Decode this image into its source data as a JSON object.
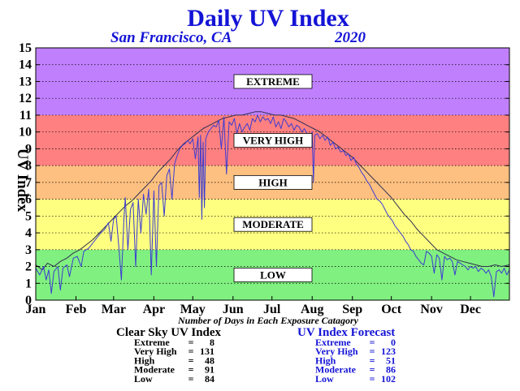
{
  "chart_data": {
    "type": "line",
    "title": "Daily UV Index",
    "subtitle_location": "San Francisco, CA",
    "subtitle_year": "2020",
    "ylabel": "UV Index",
    "xlabel_note": "Number of Days in Each Exposure Catagory",
    "ylim": [
      0,
      15
    ],
    "yticks": [
      "0",
      "1",
      "2",
      "3",
      "4",
      "5",
      "6",
      "7",
      "8",
      "9",
      "10",
      "11",
      "12",
      "13",
      "14",
      "15"
    ],
    "xlim": [
      1,
      366
    ],
    "months": [
      {
        "label": "Jan",
        "day": 1
      },
      {
        "label": "Feb",
        "day": 32
      },
      {
        "label": "Mar",
        "day": 61
      },
      {
        "label": "Apr",
        "day": 92
      },
      {
        "label": "May",
        "day": 122
      },
      {
        "label": "Jun",
        "day": 153
      },
      {
        "label": "Jul",
        "day": 183
      },
      {
        "label": "Aug",
        "day": 214
      },
      {
        "label": "Sep",
        "day": 245
      },
      {
        "label": "Oct",
        "day": 275
      },
      {
        "label": "Nov",
        "day": 306
      },
      {
        "label": "Dec",
        "day": 336
      }
    ],
    "grid": true,
    "bands": [
      {
        "label": "LOW",
        "from": 0,
        "to": 3,
        "color": "#80f080",
        "label_y": 1.5
      },
      {
        "label": "MODERATE",
        "from": 3,
        "to": 6,
        "color": "#fefe80",
        "label_y": 4.5
      },
      {
        "label": "HIGH",
        "from": 6,
        "to": 8,
        "color": "#fec080",
        "label_y": 7
      },
      {
        "label": "VERY HIGH",
        "from": 8,
        "to": 11,
        "color": "#fe8080",
        "label_y": 9.5
      },
      {
        "label": "EXTREME",
        "from": 11,
        "to": 15,
        "color": "#c080fe",
        "label_y": 13
      }
    ],
    "series": [
      {
        "key": "clear_sky",
        "color": "#303050",
        "points": [
          [
            1,
            2.1
          ],
          [
            6,
            1.8
          ],
          [
            10,
            2.2
          ],
          [
            15,
            2.0
          ],
          [
            20,
            2.3
          ],
          [
            25,
            2.5
          ],
          [
            30,
            2.8
          ],
          [
            35,
            3.0
          ],
          [
            40,
            3.3
          ],
          [
            45,
            3.6
          ],
          [
            50,
            4.0
          ],
          [
            55,
            4.4
          ],
          [
            60,
            4.8
          ],
          [
            65,
            5.2
          ],
          [
            70,
            5.6
          ],
          [
            75,
            5.9
          ],
          [
            80,
            6.3
          ],
          [
            85,
            6.7
          ],
          [
            90,
            7.1
          ],
          [
            95,
            7.6
          ],
          [
            100,
            8.0
          ],
          [
            105,
            8.4
          ],
          [
            110,
            8.9
          ],
          [
            115,
            9.3
          ],
          [
            120,
            9.6
          ],
          [
            125,
            9.9
          ],
          [
            130,
            10.2
          ],
          [
            135,
            10.4
          ],
          [
            140,
            10.6
          ],
          [
            145,
            10.8
          ],
          [
            150,
            10.9
          ],
          [
            155,
            11.0
          ],
          [
            160,
            11.0
          ],
          [
            165,
            11.1
          ],
          [
            170,
            11.2
          ],
          [
            175,
            11.2
          ],
          [
            180,
            11.1
          ],
          [
            185,
            11.0
          ],
          [
            190,
            11.0
          ],
          [
            195,
            10.9
          ],
          [
            200,
            10.8
          ],
          [
            205,
            10.6
          ],
          [
            210,
            10.4
          ],
          [
            215,
            10.2
          ],
          [
            220,
            10.0
          ],
          [
            225,
            9.7
          ],
          [
            230,
            9.4
          ],
          [
            235,
            9.1
          ],
          [
            240,
            8.8
          ],
          [
            245,
            8.5
          ],
          [
            250,
            8.1
          ],
          [
            255,
            7.7
          ],
          [
            260,
            7.3
          ],
          [
            265,
            6.9
          ],
          [
            270,
            6.5
          ],
          [
            275,
            6.1
          ],
          [
            280,
            5.6
          ],
          [
            285,
            5.1
          ],
          [
            290,
            4.7
          ],
          [
            295,
            4.2
          ],
          [
            300,
            3.8
          ],
          [
            305,
            3.4
          ],
          [
            310,
            3.0
          ],
          [
            315,
            2.8
          ],
          [
            320,
            2.6
          ],
          [
            325,
            2.4
          ],
          [
            330,
            2.3
          ],
          [
            335,
            2.2
          ],
          [
            340,
            2.1
          ],
          [
            345,
            2.0
          ],
          [
            350,
            2.0
          ],
          [
            355,
            2.1
          ],
          [
            360,
            2.0
          ],
          [
            366,
            2.1
          ]
        ]
      },
      {
        "key": "forecast",
        "color": "#3c3cd2",
        "points": [
          [
            1,
            1.9
          ],
          [
            4,
            1.5
          ],
          [
            7,
            2.0
          ],
          [
            9,
            1.2
          ],
          [
            11,
            1.8
          ],
          [
            13,
            0.4
          ],
          [
            15,
            1.7
          ],
          [
            18,
            2.0
          ],
          [
            20,
            0.6
          ],
          [
            22,
            1.9
          ],
          [
            25,
            2.1
          ],
          [
            27,
            1.4
          ],
          [
            30,
            2.5
          ],
          [
            33,
            2.6
          ],
          [
            36,
            2.0
          ],
          [
            38,
            2.9
          ],
          [
            42,
            3.1
          ],
          [
            45,
            3.4
          ],
          [
            48,
            3.7
          ],
          [
            51,
            4.0
          ],
          [
            54,
            4.2
          ],
          [
            57,
            4.6
          ],
          [
            59,
            3.5
          ],
          [
            61,
            4.8
          ],
          [
            63,
            5.0
          ],
          [
            65,
            3.2
          ],
          [
            67,
            1.2
          ],
          [
            69,
            4.9
          ],
          [
            70,
            6.1
          ],
          [
            72,
            3.0
          ],
          [
            74,
            5.4
          ],
          [
            76,
            5.8
          ],
          [
            78,
            2.0
          ],
          [
            80,
            6.0
          ],
          [
            82,
            4.0
          ],
          [
            84,
            6.3
          ],
          [
            86,
            5.1
          ],
          [
            88,
            6.6
          ],
          [
            90,
            1.5
          ],
          [
            92,
            6.5
          ],
          [
            94,
            2.0
          ],
          [
            96,
            6.8
          ],
          [
            98,
            7.0
          ],
          [
            100,
            5.0
          ],
          [
            102,
            7.4
          ],
          [
            104,
            7.8
          ],
          [
            106,
            6.0
          ],
          [
            108,
            8.1
          ],
          [
            110,
            8.6
          ],
          [
            112,
            9.0
          ],
          [
            114,
            9.2
          ],
          [
            116,
            9.3
          ],
          [
            118,
            9.5
          ],
          [
            120,
            9.3
          ],
          [
            122,
            9.6
          ],
          [
            124,
            8.4
          ],
          [
            126,
            9.7
          ],
          [
            127,
            6.1
          ],
          [
            128,
            9.8
          ],
          [
            129,
            4.8
          ],
          [
            130,
            9.4
          ],
          [
            131,
            5.5
          ],
          [
            132,
            9.6
          ],
          [
            134,
            10.0
          ],
          [
            136,
            10.2
          ],
          [
            138,
            10.4
          ],
          [
            140,
            10.3
          ],
          [
            142,
            10.7
          ],
          [
            144,
            9.0
          ],
          [
            146,
            10.9
          ],
          [
            148,
            7.5
          ],
          [
            150,
            10.6
          ],
          [
            152,
            10.4
          ],
          [
            154,
            10.8
          ],
          [
            156,
            9.9
          ],
          [
            158,
            10.5
          ],
          [
            160,
            10.0
          ],
          [
            162,
            10.3
          ],
          [
            164,
            10.5
          ],
          [
            166,
            10.1
          ],
          [
            168,
            10.8
          ],
          [
            170,
            10.6
          ],
          [
            172,
            11.0
          ],
          [
            174,
            10.6
          ],
          [
            176,
            10.9
          ],
          [
            178,
            10.7
          ],
          [
            180,
            10.8
          ],
          [
            182,
            10.5
          ],
          [
            184,
            10.9
          ],
          [
            186,
            10.3
          ],
          [
            188,
            10.6
          ],
          [
            190,
            10.2
          ],
          [
            192,
            10.8
          ],
          [
            194,
            10.6
          ],
          [
            196,
            10.3
          ],
          [
            198,
            10.5
          ],
          [
            200,
            10.1
          ],
          [
            202,
            10.4
          ],
          [
            204,
            10.3
          ],
          [
            206,
            10.0
          ],
          [
            208,
            10.2
          ],
          [
            210,
            9.9
          ],
          [
            212,
            9.6
          ],
          [
            214,
            10.0
          ],
          [
            215,
            7.0
          ],
          [
            216,
            9.8
          ],
          [
            218,
            9.9
          ],
          [
            220,
            9.6
          ],
          [
            222,
            9.8
          ],
          [
            224,
            9.5
          ],
          [
            226,
            9.7
          ],
          [
            228,
            9.2
          ],
          [
            230,
            9.4
          ],
          [
            232,
            9.0
          ],
          [
            234,
            9.1
          ],
          [
            236,
            8.8
          ],
          [
            238,
            8.9
          ],
          [
            240,
            8.6
          ],
          [
            242,
            8.7
          ],
          [
            244,
            8.3
          ],
          [
            246,
            8.5
          ],
          [
            248,
            8.1
          ],
          [
            250,
            7.9
          ],
          [
            252,
            7.6
          ],
          [
            254,
            7.4
          ],
          [
            256,
            7.1
          ],
          [
            258,
            6.9
          ],
          [
            260,
            6.6
          ],
          [
            262,
            6.3
          ],
          [
            264,
            6.0
          ],
          [
            266,
            5.9
          ],
          [
            268,
            5.7
          ],
          [
            270,
            5.4
          ],
          [
            272,
            5.1
          ],
          [
            274,
            4.9
          ],
          [
            276,
            4.7
          ],
          [
            278,
            4.4
          ],
          [
            280,
            4.2
          ],
          [
            282,
            4.0
          ],
          [
            284,
            3.8
          ],
          [
            286,
            3.5
          ],
          [
            288,
            3.3
          ],
          [
            290,
            3.0
          ],
          [
            292,
            2.9
          ],
          [
            294,
            2.6
          ],
          [
            296,
            2.4
          ],
          [
            298,
            2.2
          ],
          [
            300,
            2.1
          ],
          [
            302,
            2.9
          ],
          [
            304,
            2.8
          ],
          [
            306,
            2.6
          ],
          [
            308,
            1.6
          ],
          [
            310,
            2.7
          ],
          [
            312,
            2.5
          ],
          [
            314,
            1.2
          ],
          [
            316,
            2.6
          ],
          [
            318,
            2.4
          ],
          [
            320,
            2.5
          ],
          [
            322,
            2.3
          ],
          [
            324,
            1.5
          ],
          [
            326,
            2.3
          ],
          [
            328,
            2.2
          ],
          [
            330,
            2.1
          ],
          [
            332,
            2.0
          ],
          [
            334,
            1.8
          ],
          [
            336,
            2.0
          ],
          [
            338,
            1.9
          ],
          [
            340,
            2.0
          ],
          [
            342,
            1.7
          ],
          [
            344,
            1.9
          ],
          [
            346,
            1.8
          ],
          [
            348,
            1.6
          ],
          [
            350,
            1.8
          ],
          [
            352,
            1.4
          ],
          [
            354,
            0.2
          ],
          [
            356,
            1.7
          ],
          [
            358,
            1.8
          ],
          [
            360,
            1.6
          ],
          [
            362,
            1.9
          ],
          [
            364,
            1.5
          ],
          [
            366,
            1.8
          ]
        ]
      }
    ],
    "summary": {
      "clear_sky": {
        "title": "Clear Sky UV Index",
        "color": "#000000",
        "rows": [
          {
            "label": "Extreme",
            "value": "8"
          },
          {
            "label": "Very High",
            "value": "131"
          },
          {
            "label": "High",
            "value": "48"
          },
          {
            "label": "Moderate",
            "value": "91"
          },
          {
            "label": "Low",
            "value": "84"
          }
        ]
      },
      "forecast": {
        "title": "UV Index Forecast",
        "color": "#1414d6",
        "rows": [
          {
            "label": "Extreme",
            "value": "0"
          },
          {
            "label": "Very High",
            "value": "123"
          },
          {
            "label": "High",
            "value": "51"
          },
          {
            "label": "Moderate",
            "value": "86"
          },
          {
            "label": "Low",
            "value": "102"
          }
        ]
      }
    }
  }
}
